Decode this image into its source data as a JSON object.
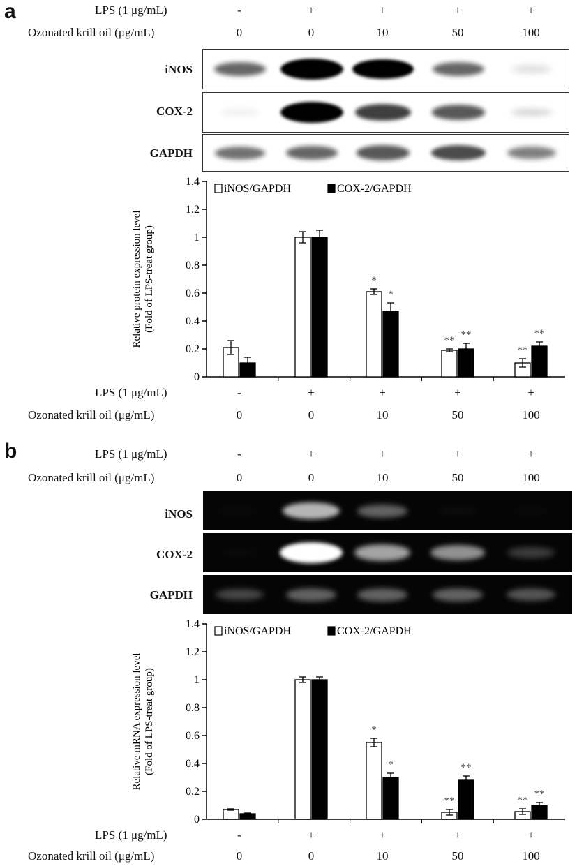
{
  "figure": {
    "condition_labels": {
      "lps": "LPS (1 μg/mL)",
      "oil": "Ozonated krill oil (μg/mL)"
    },
    "lps_values": [
      "-",
      "+",
      "+",
      "+",
      "+"
    ],
    "oil_values": [
      "0",
      "0",
      "10",
      "50",
      "100"
    ],
    "panel_a": {
      "letter": "a",
      "blots": [
        {
          "label": "iNOS",
          "intensity": [
            0.55,
            1.0,
            0.95,
            0.55,
            0.1
          ]
        },
        {
          "label": "COX-2",
          "intensity": [
            0.03,
            1.0,
            0.7,
            0.6,
            0.12
          ]
        },
        {
          "label": "GAPDH",
          "intensity": [
            0.5,
            0.55,
            0.6,
            0.65,
            0.45
          ]
        }
      ]
    },
    "panel_b": {
      "letter": "b",
      "blots": [
        {
          "label": "iNOS",
          "intensity": [
            0.03,
            0.75,
            0.5,
            0.05,
            0.02
          ]
        },
        {
          "label": "COX-2",
          "intensity": [
            0.02,
            1.0,
            0.7,
            0.65,
            0.35
          ]
        },
        {
          "label": "GAPDH",
          "intensity": [
            0.4,
            0.5,
            0.5,
            0.5,
            0.45
          ]
        }
      ]
    }
  },
  "chart_data": [
    {
      "type": "bar",
      "ylabel": "Relative protein expression level (Fold of LPS-treat group)",
      "ylim": [
        0,
        1.4
      ],
      "yticks": [
        "0",
        "0.2",
        "0.4",
        "0.6",
        "0.8",
        "1",
        "1.2",
        "1.4"
      ],
      "legend_position": "top-left",
      "series": [
        {
          "name": "iNOS/GAPDH",
          "color": "#ffffff",
          "values": [
            0.21,
            1.0,
            0.61,
            0.19,
            0.1
          ],
          "errors": [
            0.05,
            0.04,
            0.02,
            0.01,
            0.03
          ],
          "annotations": [
            "",
            "",
            "*",
            "**",
            "**"
          ]
        },
        {
          "name": "COX-2/GAPDH",
          "color": "#000000",
          "values": [
            0.1,
            1.0,
            0.47,
            0.2,
            0.22
          ],
          "errors": [
            0.04,
            0.05,
            0.06,
            0.04,
            0.03
          ],
          "annotations": [
            "",
            "",
            "*",
            "**",
            "**"
          ]
        }
      ]
    },
    {
      "type": "bar",
      "ylabel": "Relative mRNA expression level (Fold of LPS-treat group)",
      "ylim": [
        0,
        1.4
      ],
      "yticks": [
        "0",
        "0.2",
        "0.4",
        "0.6",
        "0.8",
        "1",
        "1.2",
        "1.4"
      ],
      "legend_position": "top-left",
      "series": [
        {
          "name": "iNOS/GAPDH",
          "color": "#ffffff",
          "values": [
            0.07,
            1.0,
            0.55,
            0.05,
            0.055
          ],
          "errors": [
            0.005,
            0.02,
            0.03,
            0.02,
            0.02
          ],
          "annotations": [
            "",
            "",
            "*",
            "**",
            "**"
          ]
        },
        {
          "name": "COX-2/GAPDH",
          "color": "#000000",
          "values": [
            0.04,
            1.0,
            0.3,
            0.28,
            0.1
          ],
          "errors": [
            0.005,
            0.02,
            0.03,
            0.03,
            0.02
          ],
          "annotations": [
            "",
            "",
            "*",
            "**",
            "**"
          ]
        }
      ]
    }
  ]
}
